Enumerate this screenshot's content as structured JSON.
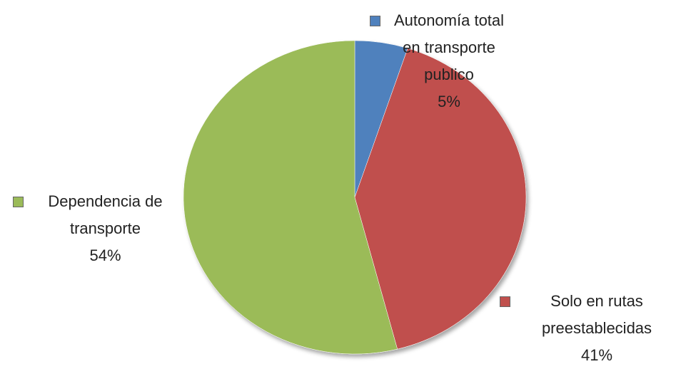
{
  "chart_data": {
    "type": "pie",
    "categories": [
      "Autonomía total en transporte publico",
      "Solo en rutas preestablecidas",
      "Dependencia de transporte"
    ],
    "values": [
      5,
      41,
      54
    ],
    "value_labels": [
      "5%",
      "41%",
      "54%"
    ],
    "colors": [
      "#4f81bd",
      "#c0504d",
      "#9bbb59"
    ]
  }
}
